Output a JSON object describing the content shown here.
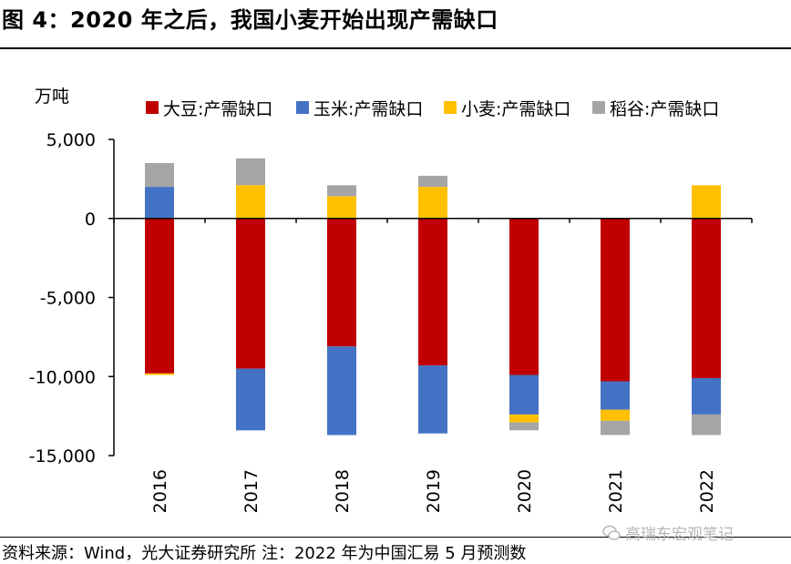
{
  "header": {
    "title": "图 4：2020 年之后，我国小麦开始出现产需缺口"
  },
  "footer": {
    "source": "资料来源：Wind，光大证券研究所  注：2022 年为中国汇易 5 月预测数",
    "watermark": "高瑞东宏观笔记"
  },
  "chart_data": {
    "type": "bar",
    "stacked": true,
    "title": "图 4：2020 年之后，我国小麦开始出现产需缺口",
    "ylabel": "万吨",
    "xlabel": "",
    "ylim": [
      -15000,
      5000
    ],
    "yticks": [
      5000,
      0,
      -5000,
      -10000,
      -15000
    ],
    "ytick_labels": [
      "5,000",
      "0",
      "-5,000",
      "-10,000",
      "-15,000"
    ],
    "categories": [
      "2016",
      "2017",
      "2018",
      "2019",
      "2020",
      "2021",
      "2022"
    ],
    "legend_position": "top",
    "series": [
      {
        "name": "大豆:产需缺口",
        "color": "#C00000",
        "values": [
          -9800,
          -9500,
          -8100,
          -9300,
          -9900,
          -10300,
          -10100
        ]
      },
      {
        "name": "玉米:产需缺口",
        "color": "#4472C4",
        "values": [
          2000,
          -3900,
          -5600,
          -4300,
          -2500,
          -1800,
          -2300
        ]
      },
      {
        "name": "小麦:产需缺口",
        "color": "#FFC000",
        "values": [
          -100,
          2100,
          1400,
          2000,
          -500,
          -700,
          2100
        ]
      },
      {
        "name": "稻谷:产需缺口",
        "color": "#A5A5A5",
        "values": [
          1500,
          1700,
          700,
          700,
          -500,
          -900,
          -1300
        ]
      }
    ]
  }
}
